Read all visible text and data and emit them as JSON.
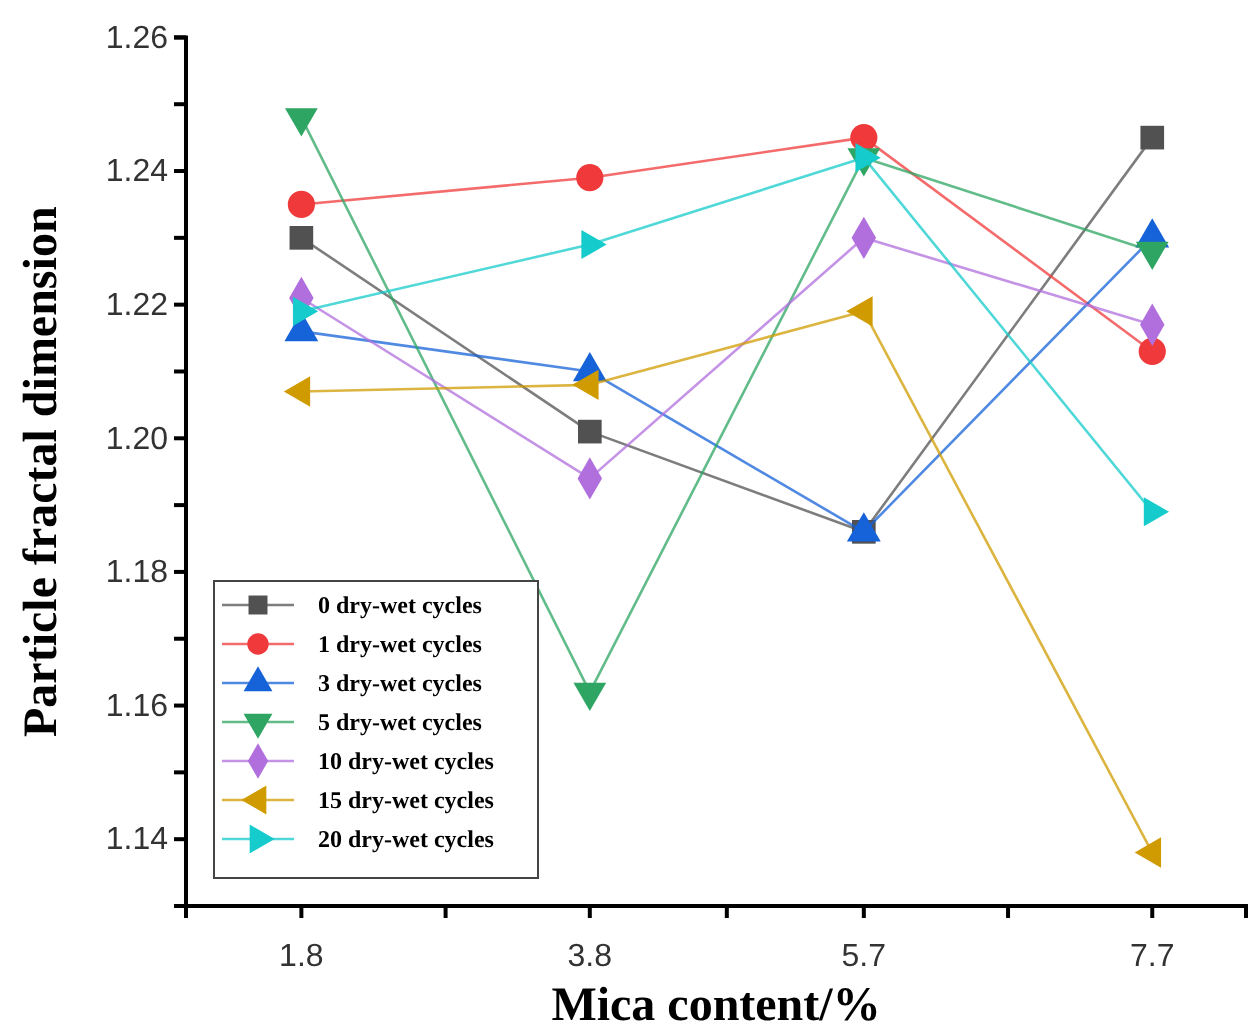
{
  "chart_data": {
    "type": "line",
    "xlabel": "Mica content/%",
    "ylabel": "Particle fractal dimension",
    "x": [
      1.8,
      3.8,
      5.7,
      7.7
    ],
    "xlim": [
      1.0,
      8.35
    ],
    "xticks": [
      1.8,
      {
        "value": 2.8,
        "label": null
      },
      3.8,
      {
        "value": 4.75,
        "label": null
      },
      5.7,
      {
        "value": 6.7,
        "label": null
      },
      7.7
    ],
    "ylim": [
      1.13,
      1.26
    ],
    "yticks": [
      {
        "value": 1.13,
        "label": null
      },
      1.14,
      {
        "value": 1.15,
        "label": null
      },
      1.16,
      {
        "value": 1.17,
        "label": null
      },
      1.18,
      {
        "value": 1.19,
        "label": null
      },
      {
        "value": 1.2,
        "label": "1.20"
      },
      {
        "value": 1.21,
        "label": null
      },
      1.22,
      {
        "value": 1.23,
        "label": null
      },
      1.24,
      {
        "value": 1.25,
        "label": null
      },
      1.26
    ],
    "grid": false,
    "legend": "bottom left",
    "line_style": "solid",
    "series": [
      {
        "name": "0 dry-wet cycles",
        "color": "#515151",
        "marker": "square",
        "values": [
          1.23,
          1.201,
          1.186,
          1.245
        ]
      },
      {
        "name": "1 dry-wet cycles",
        "color": "#f0393b",
        "marker": "circle",
        "values": [
          1.235,
          1.239,
          1.245,
          1.213
        ]
      },
      {
        "name": "3 dry-wet cycles",
        "color": "#1662d8",
        "marker": "triangle",
        "values": [
          1.216,
          1.21,
          1.186,
          1.23
        ]
      },
      {
        "name": "5 dry-wet cycles",
        "color": "#2ea563",
        "marker": "triangle-down",
        "values": [
          1.248,
          1.162,
          1.242,
          1.228
        ]
      },
      {
        "name": "10 dry-wet cycles",
        "color": "#b06fdd",
        "marker": "diamond",
        "values": [
          1.221,
          1.194,
          1.23,
          1.217
        ]
      },
      {
        "name": "15 dry-wet cycles",
        "color": "#d09b00",
        "marker": "triangle-left",
        "values": [
          1.207,
          1.208,
          1.219,
          1.138
        ]
      },
      {
        "name": "20 dry-wet cycles",
        "color": "#16cbcb",
        "marker": "triangle-right",
        "values": [
          1.219,
          1.229,
          1.242,
          1.189
        ]
      }
    ]
  }
}
